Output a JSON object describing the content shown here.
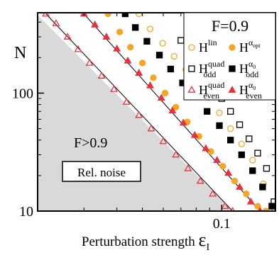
{
  "chart_data": {
    "type": "scatter",
    "xlabel_prefix": "Perturbation strength ",
    "xlabel_symbol": "ε",
    "xlabel_sub": "I",
    "ylabel": "N",
    "xscale": "log",
    "yscale": "log",
    "xlim": [
      0.02,
      0.16
    ],
    "ylim": [
      10,
      480
    ],
    "x_ticks": [
      {
        "value": 0.1,
        "label": "0.1"
      }
    ],
    "y_ticks": [
      {
        "value": 10,
        "label": "10"
      },
      {
        "value": 100,
        "label": "100"
      }
    ],
    "legend": {
      "title": "F=0.9",
      "placement": "top-right"
    },
    "shaded_region": {
      "label": "F>0.9",
      "note": "Rel. noise",
      "color": "#d9d9d9",
      "boundary_x": [
        0.02,
        0.11
      ],
      "boundary_y": [
        460,
        10
      ]
    },
    "series": [
      {
        "id": "hlin",
        "legend_main": "H",
        "legend_sup": "lin",
        "legend_sub": "",
        "marker": "circle",
        "filled": false,
        "color": "#f5a623",
        "x": [
          0.0485,
          0.0535,
          0.0597,
          0.066,
          0.073,
          0.08,
          0.089,
          0.098,
          0.108,
          0.119,
          0.131,
          0.144,
          0.152
        ],
        "y": [
          470,
          350,
          265,
          205,
          158,
          122,
          92,
          68,
          50,
          37,
          27,
          17,
          10
        ]
      },
      {
        "id": "hopt",
        "legend_main": "H",
        "legend_sup": "α",
        "legend_sub": "opt",
        "marker": "circle",
        "filled": true,
        "color": "#f5a623",
        "x": [
          0.037,
          0.041,
          0.045,
          0.05,
          0.055,
          0.061,
          0.067,
          0.074,
          0.082,
          0.091,
          0.101,
          0.112,
          0.124,
          0.137,
          0.147
        ],
        "y": [
          470,
          330,
          245,
          180,
          135,
          100,
          76,
          57,
          43,
          32,
          24,
          18,
          14,
          11,
          10
        ]
      },
      {
        "id": "hoddquad",
        "legend_main": "H",
        "legend_sup": "quad",
        "legend_sub": "odd",
        "marker": "square",
        "filled": false,
        "color": "#000000",
        "x": [
          0.07,
          0.074,
          0.079,
          0.085,
          0.092,
          0.1,
          0.108,
          0.117,
          0.127,
          0.137,
          0.148,
          0.158
        ],
        "y": [
          280,
          230,
          185,
          148,
          116,
          90,
          70,
          54,
          41,
          31,
          23,
          12
        ]
      },
      {
        "id": "hodd0",
        "legend_main": "H",
        "legend_sup": "α",
        "legend_sub": "odd",
        "marker": "square",
        "filled": true,
        "color": "#000000",
        "x": [
          0.043,
          0.047,
          0.052,
          0.058,
          0.064,
          0.071,
          0.079,
          0.088,
          0.098,
          0.108,
          0.119,
          0.131,
          0.143,
          0.155
        ],
        "y": [
          470,
          360,
          275,
          210,
          160,
          122,
          93,
          70,
          53,
          40,
          30,
          22,
          16,
          11
        ]
      },
      {
        "id": "hevenquad",
        "legend_main": "H",
        "legend_sup": "quad",
        "legend_sub": "even",
        "marker": "triangle",
        "filled": false,
        "color": "#e8313a",
        "x": [
          0.0215,
          0.0235,
          0.026,
          0.0285,
          0.0315,
          0.035,
          0.039,
          0.0435,
          0.0485,
          0.054,
          0.06,
          0.067,
          0.0745,
          0.083,
          0.0925,
          0.103,
          0.11
        ],
        "y": [
          470,
          390,
          300,
          235,
          180,
          140,
          108,
          84,
          65,
          50,
          39,
          30,
          23,
          18,
          14,
          11,
          10
        ]
      },
      {
        "id": "heven0",
        "legend_main": "H",
        "legend_sup": "α",
        "legend_sub": "even",
        "marker": "triangle",
        "filled": true,
        "color": "#e8313a",
        "x": [
          0.03,
          0.033,
          0.0365,
          0.04,
          0.044,
          0.0485,
          0.0535,
          0.059,
          0.065,
          0.0715,
          0.079,
          0.087,
          0.096,
          0.106,
          0.117,
          0.129,
          0.14
        ],
        "y": [
          470,
          380,
          300,
          238,
          188,
          148,
          116,
          91,
          71,
          56,
          44,
          34,
          27,
          21,
          16,
          12,
          10
        ]
      }
    ],
    "reference_lines": [
      {
        "x": [
          0.0215,
          0.11
        ],
        "y": [
          470,
          10
        ],
        "color": "#000000"
      },
      {
        "x": [
          0.03,
          0.14
        ],
        "y": [
          470,
          10
        ],
        "color": "#000000"
      }
    ]
  }
}
